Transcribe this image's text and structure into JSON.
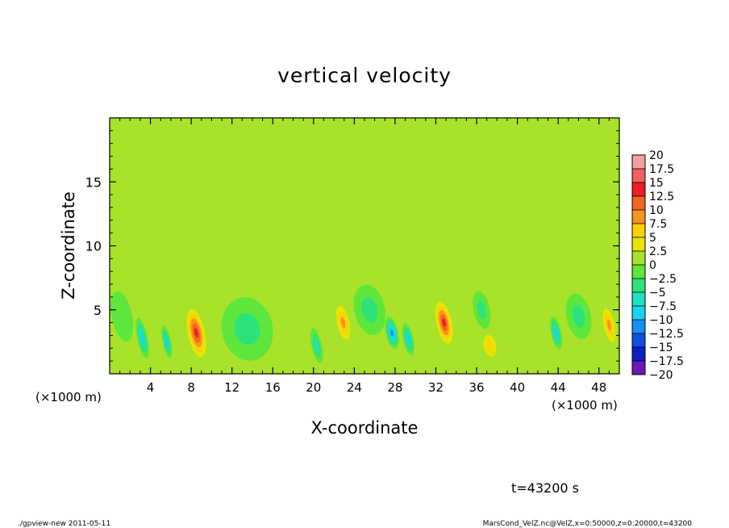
{
  "chart_data": {
    "type": "heatmap",
    "title": "vertical velocity",
    "xlabel": "X-coordinate",
    "ylabel": "Z-coordinate",
    "x_unit_left": "(×1000 m)",
    "x_unit_right": "(×1000 m)",
    "xlim": [
      0,
      50
    ],
    "ylim": [
      0,
      20
    ],
    "x_ticks": [
      4,
      8,
      12,
      16,
      20,
      24,
      28,
      32,
      36,
      40,
      44,
      48
    ],
    "x_tick_labels": [
      "4",
      "8",
      "12",
      "16",
      "20",
      "24",
      "28",
      "32",
      "36",
      "40",
      "44",
      "48"
    ],
    "y_ticks": [
      5,
      10,
      15
    ],
    "y_tick_labels": [
      "5",
      "10",
      "15"
    ],
    "time_label": "t=43200 s",
    "background_value": 0.5,
    "features": [
      {
        "x": 8.5,
        "z": 3.2,
        "value": 14,
        "rx": 1.0,
        "rz": 2.3
      },
      {
        "x": 22.9,
        "z": 4.0,
        "value": 9,
        "rx": 0.8,
        "rz": 1.8
      },
      {
        "x": 32.8,
        "z": 4.0,
        "value": 13,
        "rx": 0.9,
        "rz": 2.0
      },
      {
        "x": 37.3,
        "z": 2.2,
        "value": 7,
        "rx": 0.9,
        "rz": 1.3
      },
      {
        "x": 49.0,
        "z": 3.8,
        "value": 8,
        "rx": 0.7,
        "rz": 1.8
      },
      {
        "x": 3.2,
        "z": 2.8,
        "value": -8,
        "rx": 0.5,
        "rz": 1.6
      },
      {
        "x": 5.6,
        "z": 2.5,
        "value": -9,
        "rx": 0.4,
        "rz": 1.3
      },
      {
        "x": 20.3,
        "z": 2.2,
        "value": -6,
        "rx": 0.5,
        "rz": 1.4
      },
      {
        "x": 27.7,
        "z": 3.2,
        "value": -11,
        "rx": 0.6,
        "rz": 1.3
      },
      {
        "x": 29.3,
        "z": 2.7,
        "value": -10,
        "rx": 0.5,
        "rz": 1.3
      },
      {
        "x": 43.8,
        "z": 3.2,
        "value": -10,
        "rx": 0.5,
        "rz": 1.3
      },
      {
        "x": 13.5,
        "z": 3.5,
        "value": -3,
        "rx": 2.5,
        "rz": 2.5
      },
      {
        "x": 36.5,
        "z": 5.0,
        "value": -4,
        "rx": 0.8,
        "rz": 1.5
      },
      {
        "x": 25.5,
        "z": 5.0,
        "value": -3,
        "rx": 1.5,
        "rz": 2.0
      },
      {
        "x": 46.0,
        "z": 4.5,
        "value": -3,
        "rx": 1.2,
        "rz": 1.8
      },
      {
        "x": 1.2,
        "z": 4.5,
        "value": -2,
        "rx": 1.0,
        "rz": 2.0
      }
    ],
    "colorbar": {
      "labels": [
        "20",
        "17.5",
        "15",
        "12.5",
        "10",
        "7.5",
        "5",
        "2.5",
        "0",
        "−2.5",
        "−5",
        "−7.5",
        "−10",
        "−12.5",
        "−15",
        "−17.5",
        "−20"
      ],
      "bins": [
        {
          "low": 17.5,
          "high": 20,
          "color": "#f5a0a0"
        },
        {
          "low": 15,
          "high": 17.5,
          "color": "#f06060"
        },
        {
          "low": 12.5,
          "high": 15,
          "color": "#ee1c24"
        },
        {
          "low": 10,
          "high": 12.5,
          "color": "#f26522"
        },
        {
          "low": 7.5,
          "high": 10,
          "color": "#f7941d"
        },
        {
          "low": 5,
          "high": 7.5,
          "color": "#fcd10a"
        },
        {
          "low": 2.5,
          "high": 5,
          "color": "#e6e600"
        },
        {
          "low": 0,
          "high": 2.5,
          "color": "#a8e22a"
        },
        {
          "low": -2.5,
          "high": 0,
          "color": "#5ee63c"
        },
        {
          "low": -5,
          "high": -2.5,
          "color": "#2ee27a"
        },
        {
          "low": -7.5,
          "high": -5,
          "color": "#1fe0c0"
        },
        {
          "low": -10,
          "high": -7.5,
          "color": "#17d4f0"
        },
        {
          "low": -12.5,
          "high": -10,
          "color": "#1590f0"
        },
        {
          "low": -15,
          "high": -12.5,
          "color": "#1050e0"
        },
        {
          "low": -17.5,
          "high": -15,
          "color": "#0a20c8"
        },
        {
          "low": -20,
          "high": -17.5,
          "color": "#6a18b8"
        }
      ]
    }
  },
  "footer": {
    "left": "./gpview-new  2011-05-11",
    "right": "MarsCond_VelZ.nc@VelZ,x=0:50000,z=0:20000,t=43200"
  }
}
